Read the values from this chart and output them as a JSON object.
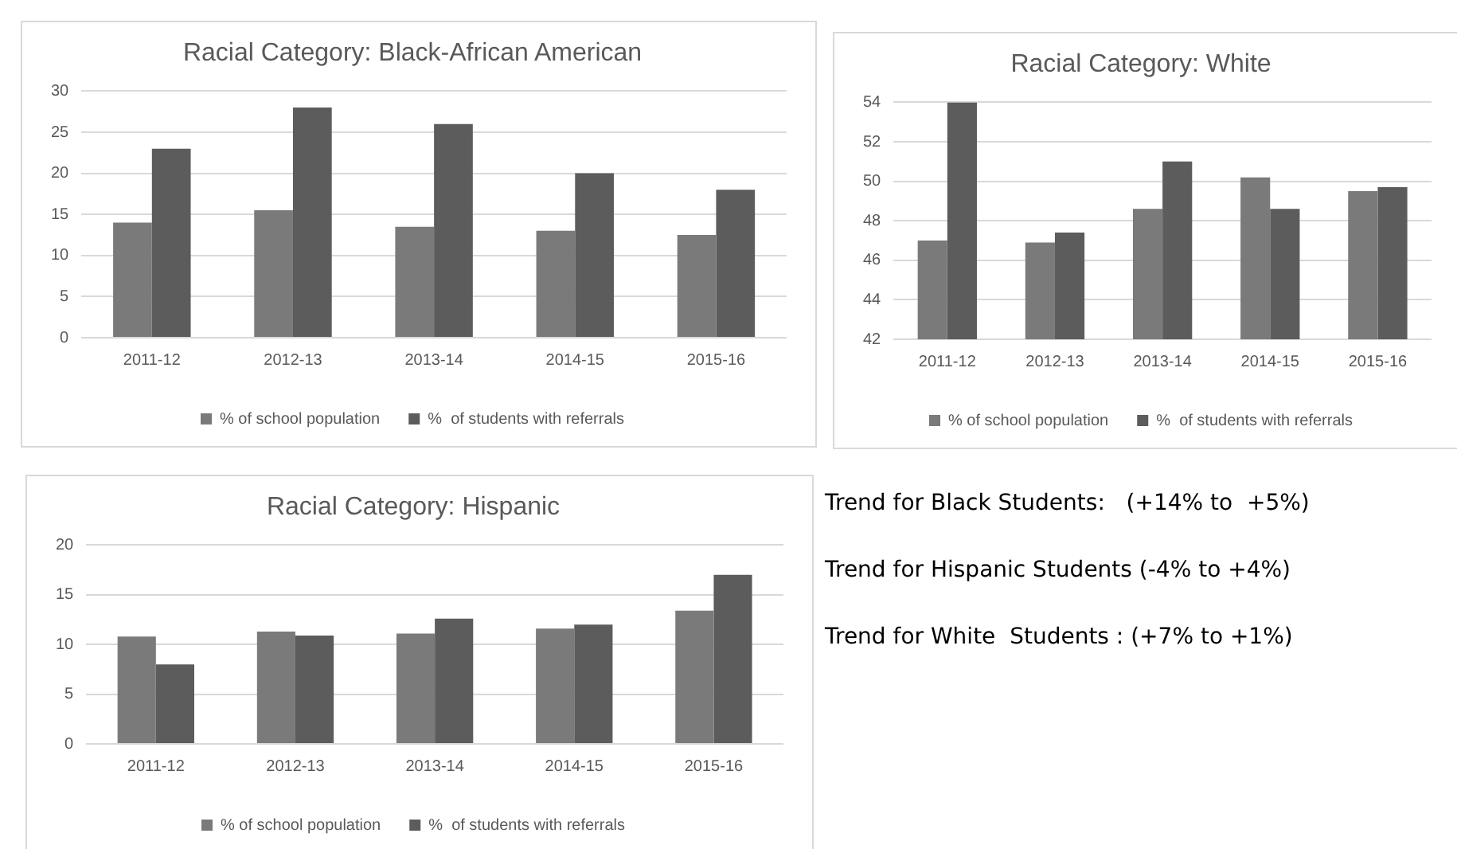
{
  "chart_data": [
    {
      "type": "bar",
      "title": "Racial Category: Black-African American",
      "categories": [
        "2011-12",
        "2012-13",
        "2013-14",
        "2014-15",
        "2015-16"
      ],
      "series": [
        {
          "name": "% of school population",
          "color": "#7a7a7a",
          "values": [
            14,
            15.5,
            13.5,
            13,
            12.5
          ]
        },
        {
          "name": "%  of students with referrals",
          "color": "#5c5c5c",
          "values": [
            23,
            28,
            26,
            20,
            18
          ]
        }
      ],
      "ylim": [
        0,
        30
      ],
      "yticks": [
        0,
        5,
        10,
        15,
        20,
        25,
        30
      ],
      "grid": "y",
      "legend": "bottom"
    },
    {
      "type": "bar",
      "title": "Racial Category: White",
      "categories": [
        "2011-12",
        "2012-13",
        "2013-14",
        "2014-15",
        "2015-16"
      ],
      "series": [
        {
          "name": "% of school population",
          "color": "#7a7a7a",
          "values": [
            47,
            46.9,
            48.6,
            50.2,
            49.5
          ]
        },
        {
          "name": "%  of students with referrals",
          "color": "#5c5c5c",
          "values": [
            54,
            47.4,
            51,
            48.6,
            49.7
          ]
        }
      ],
      "ylim": [
        42,
        54
      ],
      "yticks": [
        42,
        44,
        46,
        48,
        50,
        52,
        54
      ],
      "grid": "y",
      "legend": "bottom"
    },
    {
      "type": "bar",
      "title": "Racial Category: Hispanic",
      "categories": [
        "2011-12",
        "2012-13",
        "2013-14",
        "2014-15",
        "2015-16"
      ],
      "series": [
        {
          "name": "% of school population",
          "color": "#7a7a7a",
          "values": [
            10.8,
            11.3,
            11.1,
            11.6,
            13.4
          ]
        },
        {
          "name": "%  of students with referrals",
          "color": "#5c5c5c",
          "values": [
            8,
            10.9,
            12.6,
            12,
            17
          ]
        }
      ],
      "ylim": [
        0,
        20
      ],
      "yticks": [
        0,
        5,
        10,
        15,
        20
      ],
      "grid": "y",
      "legend": "bottom"
    },
    {
      "type": "other",
      "annotations": [
        "Trend for Black Students:   (+14% to  +5%)",
        "Trend for Hispanic Students (-4% to +4%)",
        "Trend for White  Students : (+7% to +1%)"
      ]
    }
  ]
}
